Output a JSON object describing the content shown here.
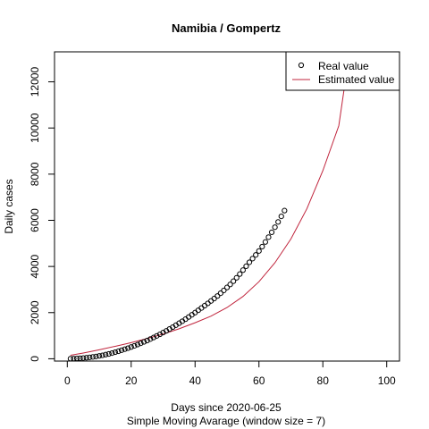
{
  "chart_data": {
    "type": "scatter",
    "title": "Namibia / Gompertz",
    "xlabel": "Days since 2020-06-25",
    "sublabel": "Simple Moving Avarage (window size = 7)",
    "ylabel": "Daily cases",
    "xlim": [
      0,
      100
    ],
    "ylim": [
      0,
      12800
    ],
    "xticks": [
      0,
      20,
      40,
      60,
      80,
      100
    ],
    "yticks": [
      0,
      2000,
      4000,
      6000,
      8000,
      10000,
      12000
    ],
    "grid": false,
    "legend": {
      "position": "top-right",
      "entries": [
        "Real value",
        "Estimated value"
      ]
    },
    "colors": {
      "real": "#000000",
      "estimated": "#c0243c"
    },
    "series": [
      {
        "name": "Real value",
        "style": "points",
        "x": [
          1,
          2,
          3,
          4,
          5,
          6,
          7,
          8,
          9,
          10,
          11,
          12,
          13,
          14,
          15,
          16,
          17,
          18,
          19,
          20,
          21,
          22,
          23,
          24,
          25,
          26,
          27,
          28,
          29,
          30,
          31,
          32,
          33,
          34,
          35,
          36,
          37,
          38,
          39,
          40,
          41,
          42,
          43,
          44,
          45,
          46,
          47,
          48,
          49,
          50,
          51,
          52,
          53,
          54,
          55,
          56,
          57,
          58,
          59,
          60,
          61,
          62,
          63,
          64,
          65,
          66,
          67,
          68
        ],
        "y": [
          4,
          8,
          14,
          22,
          32,
          45,
          60,
          80,
          100,
          125,
          150,
          180,
          210,
          245,
          285,
          325,
          370,
          415,
          460,
          510,
          560,
          615,
          670,
          730,
          790,
          855,
          920,
          990,
          1060,
          1135,
          1210,
          1290,
          1370,
          1455,
          1540,
          1625,
          1715,
          1810,
          1905,
          2000,
          2100,
          2200,
          2300,
          2400,
          2505,
          2610,
          2720,
          2840,
          2960,
          3090,
          3220,
          3360,
          3510,
          3670,
          3840,
          4010,
          4180,
          4340,
          4500,
          4670,
          4860,
          5060,
          5270,
          5480,
          5700,
          5930,
          6170,
          6420
        ]
      },
      {
        "name": "Estimated value",
        "style": "line",
        "x": [
          1,
          5,
          10,
          15,
          20,
          25,
          30,
          35,
          40,
          45,
          50,
          55,
          60,
          65,
          70,
          75,
          80,
          85,
          87
        ],
        "y": [
          150,
          250,
          390,
          540,
          700,
          880,
          1070,
          1300,
          1560,
          1850,
          2220,
          2700,
          3340,
          4160,
          5190,
          6500,
          8150,
          10100,
          12000
        ]
      }
    ]
  }
}
